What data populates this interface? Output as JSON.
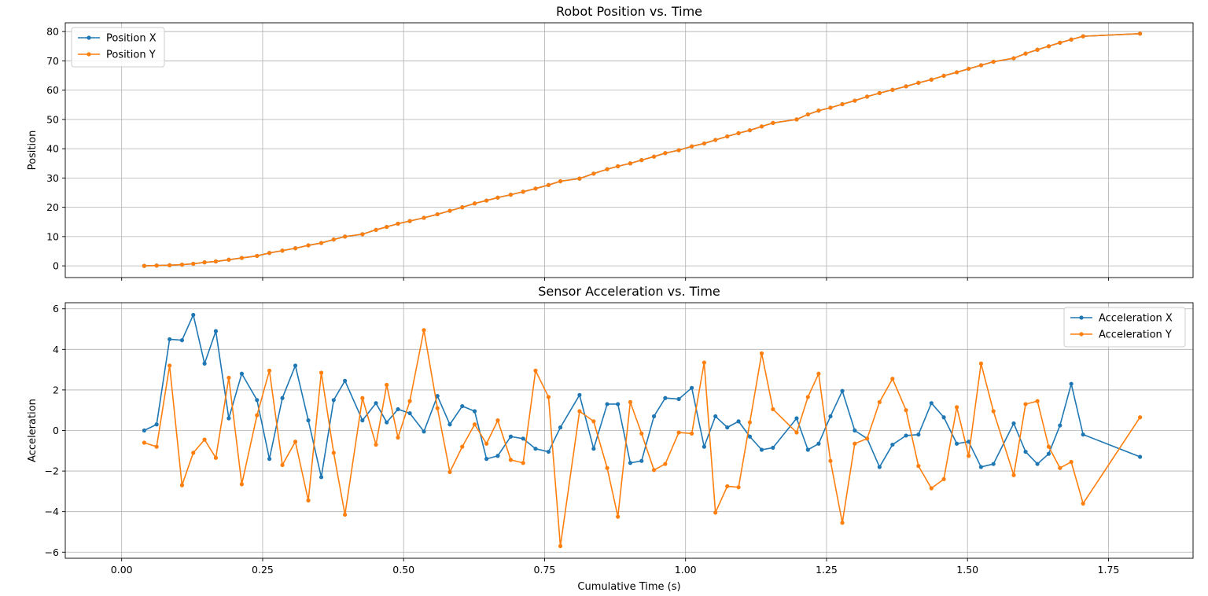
{
  "figure": {
    "xlabel": "Cumulative Time (s)"
  },
  "colors": {
    "series_x": "#1f77b4",
    "series_y": "#ff7f0e",
    "grid": "#b0b0b0",
    "frame": "#000000",
    "legend_border": "#cccccc"
  },
  "chart_data": [
    {
      "type": "line",
      "title": "Robot Position vs. Time",
      "xlabel": "",
      "ylabel": "Position",
      "xlim": [
        -0.1,
        1.9
      ],
      "ylim": [
        -4,
        83
      ],
      "xticks": [
        0.0,
        0.25,
        0.5,
        0.75,
        1.0,
        1.25,
        1.5,
        1.75
      ],
      "xtick_labels": [],
      "yticks": [
        0,
        10,
        20,
        30,
        40,
        50,
        60,
        70,
        80
      ],
      "ytick_labels": [
        "0",
        "10",
        "20",
        "30",
        "40",
        "50",
        "60",
        "70",
        "80"
      ],
      "grid": true,
      "legend_position": "upper-left",
      "x": [
        0.04,
        0.062,
        0.085,
        0.107,
        0.127,
        0.147,
        0.167,
        0.19,
        0.213,
        0.24,
        0.262,
        0.285,
        0.308,
        0.331,
        0.354,
        0.376,
        0.396,
        0.427,
        0.451,
        0.47,
        0.49,
        0.511,
        0.536,
        0.56,
        0.582,
        0.604,
        0.626,
        0.647,
        0.667,
        0.69,
        0.712,
        0.734,
        0.757,
        0.778,
        0.812,
        0.837,
        0.861,
        0.88,
        0.902,
        0.922,
        0.944,
        0.964,
        0.988,
        1.011,
        1.033,
        1.053,
        1.074,
        1.094,
        1.114,
        1.135,
        1.155,
        1.197,
        1.217,
        1.236,
        1.257,
        1.278,
        1.3,
        1.322,
        1.344,
        1.367,
        1.391,
        1.413,
        1.436,
        1.458,
        1.481,
        1.502,
        1.524,
        1.546,
        1.582,
        1.603,
        1.624,
        1.644,
        1.664,
        1.684,
        1.705,
        1.806
      ],
      "series": [
        {
          "name": "Position X",
          "values": [
            0.0,
            0.1,
            0.2,
            0.4,
            0.7,
            1.2,
            1.5,
            2.1,
            2.7,
            3.4,
            4.4,
            5.2,
            6.0,
            7.0,
            7.8,
            9.0,
            10.0,
            10.8,
            12.3,
            13.3,
            14.4,
            15.3,
            16.4,
            17.6,
            18.8,
            20.0,
            21.3,
            22.3,
            23.3,
            24.3,
            25.3,
            26.4,
            27.6,
            28.9,
            29.8,
            31.5,
            33.0,
            34.0,
            35.0,
            36.1,
            37.3,
            38.5,
            39.5,
            40.8,
            41.8,
            43.0,
            44.2,
            45.3,
            46.3,
            47.6,
            48.8,
            50.0,
            51.7,
            53.0,
            54.0,
            55.2,
            56.4,
            57.8,
            59.0,
            60.1,
            61.3,
            62.5,
            63.6,
            64.9,
            66.1,
            67.3,
            68.5,
            69.7,
            70.9,
            72.5,
            73.8,
            75.0,
            76.2,
            77.3,
            78.4,
            79.3
          ]
        },
        {
          "name": "Position Y",
          "values": [
            0.0,
            0.1,
            0.2,
            0.4,
            0.7,
            1.2,
            1.5,
            2.1,
            2.7,
            3.4,
            4.4,
            5.2,
            6.0,
            7.0,
            7.8,
            9.0,
            10.0,
            10.8,
            12.3,
            13.3,
            14.4,
            15.3,
            16.4,
            17.6,
            18.8,
            20.0,
            21.3,
            22.3,
            23.3,
            24.3,
            25.3,
            26.4,
            27.6,
            28.9,
            29.8,
            31.5,
            33.0,
            34.0,
            35.0,
            36.1,
            37.3,
            38.5,
            39.5,
            40.8,
            41.8,
            43.0,
            44.2,
            45.3,
            46.3,
            47.6,
            48.8,
            50.0,
            51.7,
            53.0,
            54.0,
            55.2,
            56.4,
            57.8,
            59.0,
            60.1,
            61.3,
            62.5,
            63.6,
            64.9,
            66.1,
            67.3,
            68.5,
            69.7,
            70.9,
            72.5,
            73.8,
            75.0,
            76.2,
            77.3,
            78.4,
            79.3
          ]
        }
      ]
    },
    {
      "type": "line",
      "title": "Sensor Acceleration vs. Time",
      "xlabel": "Cumulative Time (s)",
      "ylabel": "Acceleration",
      "xlim": [
        -0.1,
        1.9
      ],
      "ylim": [
        -6.3,
        6.3
      ],
      "xticks": [
        0.0,
        0.25,
        0.5,
        0.75,
        1.0,
        1.25,
        1.5,
        1.75
      ],
      "xtick_labels": [
        "0.00",
        "0.25",
        "0.50",
        "0.75",
        "1.00",
        "1.25",
        "1.50",
        "1.75"
      ],
      "yticks": [
        -6,
        -4,
        -2,
        0,
        2,
        4,
        6
      ],
      "ytick_labels": [
        "−6",
        "−4",
        "−2",
        "0",
        "2",
        "4",
        "6"
      ],
      "grid": true,
      "legend_position": "upper-right",
      "x": [
        0.04,
        0.062,
        0.085,
        0.107,
        0.127,
        0.147,
        0.167,
        0.19,
        0.213,
        0.24,
        0.262,
        0.285,
        0.308,
        0.331,
        0.354,
        0.376,
        0.396,
        0.427,
        0.451,
        0.47,
        0.49,
        0.511,
        0.536,
        0.56,
        0.582,
        0.604,
        0.626,
        0.647,
        0.667,
        0.69,
        0.712,
        0.734,
        0.757,
        0.778,
        0.812,
        0.837,
        0.861,
        0.88,
        0.902,
        0.922,
        0.944,
        0.964,
        0.988,
        1.011,
        1.033,
        1.053,
        1.074,
        1.094,
        1.114,
        1.135,
        1.155,
        1.197,
        1.217,
        1.236,
        1.257,
        1.278,
        1.3,
        1.322,
        1.344,
        1.367,
        1.391,
        1.413,
        1.436,
        1.458,
        1.481,
        1.502,
        1.524,
        1.546,
        1.582,
        1.603,
        1.624,
        1.644,
        1.664,
        1.684,
        1.705,
        1.806
      ],
      "series": [
        {
          "name": "Acceleration X",
          "values": [
            0.0,
            0.3,
            4.5,
            4.45,
            5.7,
            3.3,
            4.9,
            0.6,
            2.8,
            1.5,
            -1.4,
            1.6,
            3.2,
            0.5,
            -2.3,
            1.5,
            2.45,
            0.5,
            1.35,
            0.4,
            1.05,
            0.85,
            -0.05,
            1.7,
            0.3,
            1.2,
            0.95,
            -1.4,
            -1.25,
            -0.3,
            -0.4,
            -0.9,
            -1.05,
            0.15,
            1.75,
            -0.9,
            1.3,
            1.3,
            -1.6,
            -1.5,
            0.7,
            1.6,
            1.55,
            2.1,
            -0.8,
            0.7,
            0.15,
            0.45,
            -0.3,
            -0.95,
            -0.85,
            0.6,
            -0.95,
            -0.65,
            0.7,
            1.95,
            0.0,
            -0.4,
            -1.8,
            -0.7,
            -0.25,
            -0.2,
            1.35,
            0.65,
            -0.65,
            -0.55,
            -1.8,
            -1.65,
            0.35,
            -1.05,
            -1.65,
            -1.15,
            0.25,
            2.3,
            -0.2,
            -1.3
          ]
        },
        {
          "name": "Acceleration Y",
          "values": [
            -0.6,
            -0.8,
            3.2,
            -2.7,
            -1.1,
            -0.45,
            -1.35,
            2.6,
            -2.65,
            0.75,
            2.95,
            -1.7,
            -0.55,
            -3.45,
            2.85,
            -1.1,
            -4.15,
            1.6,
            -0.7,
            2.25,
            -0.35,
            1.45,
            4.95,
            1.1,
            -2.05,
            -0.8,
            0.3,
            -0.65,
            0.5,
            -1.45,
            -1.6,
            2.95,
            1.65,
            -5.7,
            0.95,
            0.45,
            -1.85,
            -4.25,
            1.4,
            -0.15,
            -1.95,
            -1.65,
            -0.1,
            -0.15,
            3.35,
            -4.05,
            -2.75,
            -2.8,
            0.4,
            3.8,
            1.05,
            -0.1,
            1.65,
            2.8,
            -1.5,
            -4.55,
            -0.65,
            -0.4,
            1.4,
            2.55,
            1.0,
            -1.75,
            -2.85,
            -2.4,
            1.15,
            -1.25,
            3.3,
            0.95,
            -2.2,
            1.3,
            1.45,
            -0.8,
            -1.85,
            -1.55,
            -3.6,
            0.65
          ]
        }
      ]
    }
  ]
}
